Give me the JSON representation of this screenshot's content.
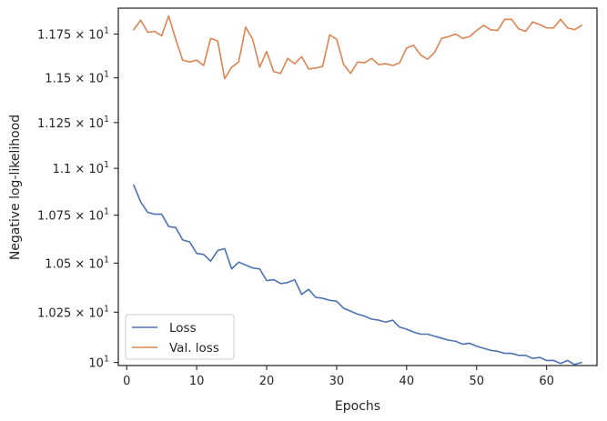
{
  "chart_data": {
    "type": "line",
    "xlabel": "Epochs",
    "ylabel": "Negative log-likelihood",
    "xlim": [
      -1.2,
      67.2
    ],
    "ylim": [
      9.985,
      11.9
    ],
    "x_scale": "linear",
    "y_scale": "log",
    "grid": false,
    "legend_position": "lower-left",
    "x_ticks": [
      0,
      10,
      20,
      30,
      40,
      50,
      60
    ],
    "x_tick_labels": [
      "0",
      "10",
      "20",
      "30",
      "40",
      "50",
      "60"
    ],
    "y_ticks": [
      10.0,
      10.25,
      10.5,
      10.75,
      11.0,
      11.25,
      11.5,
      11.75
    ],
    "y_tick_labels": [
      {
        "base": "10",
        "prefix": "",
        "exp": "1"
      },
      {
        "base": "10",
        "prefix": "1.025 × ",
        "exp": "1"
      },
      {
        "base": "10",
        "prefix": "1.05 × ",
        "exp": "1"
      },
      {
        "base": "10",
        "prefix": "1.075 × ",
        "exp": "1"
      },
      {
        "base": "10",
        "prefix": "1.1 × ",
        "exp": "1"
      },
      {
        "base": "10",
        "prefix": "1.125 × ",
        "exp": "1"
      },
      {
        "base": "10",
        "prefix": "1.15 × ",
        "exp": "1"
      },
      {
        "base": "10",
        "prefix": "1.175 × ",
        "exp": "1"
      }
    ],
    "x": [
      1,
      2,
      3,
      4,
      5,
      6,
      7,
      8,
      9,
      10,
      11,
      12,
      13,
      14,
      15,
      16,
      17,
      18,
      19,
      20,
      21,
      22,
      23,
      24,
      25,
      26,
      27,
      28,
      29,
      30,
      31,
      32,
      33,
      34,
      35,
      36,
      37,
      38,
      39,
      40,
      41,
      42,
      43,
      44,
      45,
      46,
      47,
      48,
      49,
      50,
      51,
      52,
      53,
      54,
      55,
      56,
      57,
      58,
      59,
      60,
      61,
      62,
      63,
      64,
      65
    ],
    "series": [
      {
        "name": "Loss",
        "color": "#4c72b0",
        "values": [
          10.91,
          10.82,
          10.765,
          10.755,
          10.755,
          10.69,
          10.685,
          10.62,
          10.61,
          10.55,
          10.545,
          10.51,
          10.565,
          10.575,
          10.47,
          10.505,
          10.49,
          10.475,
          10.47,
          10.41,
          10.415,
          10.395,
          10.4,
          10.415,
          10.34,
          10.365,
          10.325,
          10.32,
          10.31,
          10.305,
          10.27,
          10.255,
          10.24,
          10.23,
          10.215,
          10.21,
          10.2,
          10.21,
          10.175,
          10.165,
          10.15,
          10.14,
          10.14,
          10.13,
          10.12,
          10.11,
          10.105,
          10.09,
          10.095,
          10.08,
          10.07,
          10.06,
          10.055,
          10.045,
          10.045,
          10.035,
          10.035,
          10.02,
          10.025,
          10.01,
          10.01,
          9.995,
          10.01,
          9.99,
          10.0
        ]
      },
      {
        "name": "Val. loss",
        "color": "#dd8452",
        "values": [
          11.775,
          11.83,
          11.76,
          11.765,
          11.74,
          11.855,
          11.72,
          11.6,
          11.59,
          11.6,
          11.57,
          11.725,
          11.71,
          11.495,
          11.56,
          11.59,
          11.79,
          11.72,
          11.56,
          11.65,
          11.535,
          11.525,
          11.61,
          11.58,
          11.62,
          11.55,
          11.555,
          11.565,
          11.745,
          11.72,
          11.575,
          11.525,
          11.59,
          11.585,
          11.61,
          11.575,
          11.58,
          11.57,
          11.585,
          11.67,
          11.685,
          11.63,
          11.605,
          11.645,
          11.725,
          11.735,
          11.75,
          11.725,
          11.735,
          11.77,
          11.8,
          11.775,
          11.77,
          11.835,
          11.835,
          11.78,
          11.765,
          11.82,
          11.805,
          11.785,
          11.785,
          11.835,
          11.785,
          11.775,
          11.8
        ]
      }
    ]
  }
}
